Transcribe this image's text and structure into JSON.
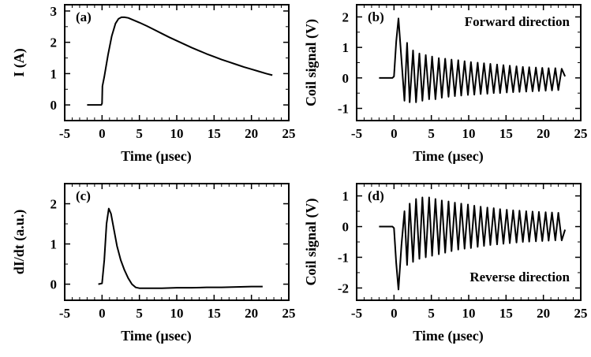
{
  "chart_data": [
    {
      "panel": "(a)",
      "type": "line",
      "xlabel": "Time (µsec)",
      "ylabel": "I (A)",
      "xlim": [
        -5,
        25
      ],
      "ylim": [
        -0.5,
        3.2
      ],
      "xticks": [
        -5,
        0,
        5,
        10,
        15,
        20,
        25
      ],
      "yticks": [
        0,
        1,
        2,
        3
      ],
      "annotation": "",
      "series": [
        {
          "x": [
            -2,
            -0.1,
            0,
            0.05,
            0.3,
            0.8,
            1.3,
            1.8,
            2.2,
            2.6,
            3,
            3.5,
            4,
            5,
            6,
            7,
            8,
            9,
            10,
            11,
            12,
            13,
            14,
            15,
            16,
            17,
            18,
            19,
            20,
            21,
            22,
            22.8
          ],
          "y": [
            0,
            0,
            0.05,
            0.6,
            0.9,
            1.6,
            2.2,
            2.6,
            2.75,
            2.8,
            2.8,
            2.78,
            2.73,
            2.63,
            2.52,
            2.4,
            2.28,
            2.16,
            2.05,
            1.94,
            1.83,
            1.73,
            1.63,
            1.54,
            1.45,
            1.37,
            1.29,
            1.21,
            1.14,
            1.07,
            1.0,
            0.95
          ]
        }
      ]
    },
    {
      "panel": "(b)",
      "type": "line",
      "xlabel": "Time (µsec)",
      "ylabel": "Coil signal (V)",
      "xlim": [
        -5,
        25
      ],
      "ylim": [
        -1.4,
        2.4
      ],
      "xticks": [
        -5,
        0,
        5,
        10,
        15,
        20,
        25
      ],
      "yticks": [
        -1,
        0,
        1,
        2
      ],
      "annotation": "Forward direction",
      "series": [
        {
          "x": [
            -2,
            -0.2,
            0,
            0.3,
            0.6,
            1.0,
            1.4,
            1.75,
            2.1,
            2.55,
            2.95,
            3.4,
            3.8,
            4.25,
            4.7,
            5.1,
            5.55,
            6.0,
            6.4,
            6.85,
            7.3,
            7.7,
            8.15,
            8.6,
            9.0,
            9.45,
            9.9,
            10.3,
            10.75,
            11.2,
            11.6,
            12.05,
            12.5,
            12.9,
            13.35,
            13.8,
            14.2,
            14.65,
            15.1,
            15.5,
            15.95,
            16.4,
            16.8,
            17.25,
            17.7,
            18.1,
            18.55,
            19.0,
            19.4,
            19.85,
            20.3,
            20.7,
            21.15,
            21.6,
            22.0,
            22.45,
            22.9
          ],
          "y": [
            0,
            0,
            0.05,
            1.2,
            1.95,
            0.6,
            -0.75,
            1.15,
            -0.8,
            0.9,
            -0.8,
            0.8,
            -0.75,
            0.75,
            -0.7,
            0.7,
            -0.7,
            0.65,
            -0.65,
            0.63,
            -0.62,
            0.6,
            -0.6,
            0.58,
            -0.58,
            0.55,
            -0.56,
            0.52,
            -0.55,
            0.5,
            -0.53,
            0.48,
            -0.52,
            0.46,
            -0.5,
            0.44,
            -0.5,
            0.42,
            -0.48,
            0.4,
            -0.47,
            0.38,
            -0.46,
            0.36,
            -0.45,
            0.35,
            -0.44,
            0.34,
            -0.43,
            0.33,
            -0.42,
            0.32,
            -0.41,
            0.32,
            -0.4,
            0.3,
            0.05
          ]
        }
      ]
    },
    {
      "panel": "(c)",
      "type": "line",
      "xlabel": "Time (µsec)",
      "ylabel": "dI/dt  (a.u.)",
      "xlim": [
        -5,
        25
      ],
      "ylim": [
        -0.4,
        2.5
      ],
      "xticks": [
        -5,
        0,
        5,
        10,
        15,
        20,
        25
      ],
      "yticks": [
        0,
        1,
        2
      ],
      "annotation": "",
      "series": [
        {
          "x": [
            -0.5,
            0,
            0.3,
            0.6,
            0.9,
            1.2,
            1.6,
            2.0,
            2.5,
            3.0,
            3.5,
            4.0,
            4.5,
            5.0,
            6,
            8,
            10,
            12,
            14,
            16,
            18,
            20,
            21.5
          ],
          "y": [
            0,
            0.02,
            0.6,
            1.5,
            1.88,
            1.75,
            1.35,
            0.95,
            0.6,
            0.35,
            0.15,
            0.0,
            -0.08,
            -0.1,
            -0.1,
            -0.1,
            -0.09,
            -0.09,
            -0.08,
            -0.08,
            -0.07,
            -0.06,
            -0.06
          ]
        }
      ]
    },
    {
      "panel": "(d)",
      "type": "line",
      "xlabel": "Time (µsec)",
      "ylabel": "Coil signal (V)",
      "xlim": [
        -5,
        25
      ],
      "ylim": [
        -2.4,
        1.4
      ],
      "xticks": [
        -5,
        0,
        5,
        10,
        15,
        20,
        25
      ],
      "yticks": [
        -2,
        -1,
        0,
        1
      ],
      "annotation": "Reverse direction",
      "series": [
        {
          "x": [
            -2,
            -0.2,
            0,
            0.3,
            0.6,
            1.0,
            1.4,
            1.75,
            2.1,
            2.55,
            2.95,
            3.4,
            3.8,
            4.25,
            4.7,
            5.1,
            5.55,
            6.0,
            6.4,
            6.85,
            7.3,
            7.7,
            8.15,
            8.6,
            9.0,
            9.45,
            9.9,
            10.3,
            10.75,
            11.2,
            11.6,
            12.05,
            12.5,
            12.9,
            13.35,
            13.8,
            14.2,
            14.65,
            15.1,
            15.5,
            15.95,
            16.4,
            16.8,
            17.25,
            17.7,
            18.1,
            18.55,
            19.0,
            19.4,
            19.85,
            20.3,
            20.7,
            21.15,
            21.6,
            22.0,
            22.45,
            22.9
          ],
          "y": [
            0,
            0,
            -0.05,
            -1.2,
            -2.05,
            -0.6,
            0.5,
            -1.25,
            0.75,
            -1.15,
            0.9,
            -1.05,
            0.95,
            -1.0,
            0.95,
            -0.95,
            0.9,
            -0.9,
            0.85,
            -0.85,
            0.82,
            -0.8,
            0.78,
            -0.75,
            0.75,
            -0.72,
            0.72,
            -0.7,
            0.68,
            -0.66,
            0.65,
            -0.63,
            0.62,
            -0.6,
            0.6,
            -0.58,
            0.57,
            -0.56,
            0.55,
            -0.54,
            0.53,
            -0.52,
            0.52,
            -0.5,
            0.5,
            -0.49,
            0.49,
            -0.48,
            0.48,
            -0.47,
            0.47,
            -0.46,
            0.46,
            -0.45,
            0.45,
            -0.45,
            -0.1
          ]
        }
      ]
    }
  ]
}
